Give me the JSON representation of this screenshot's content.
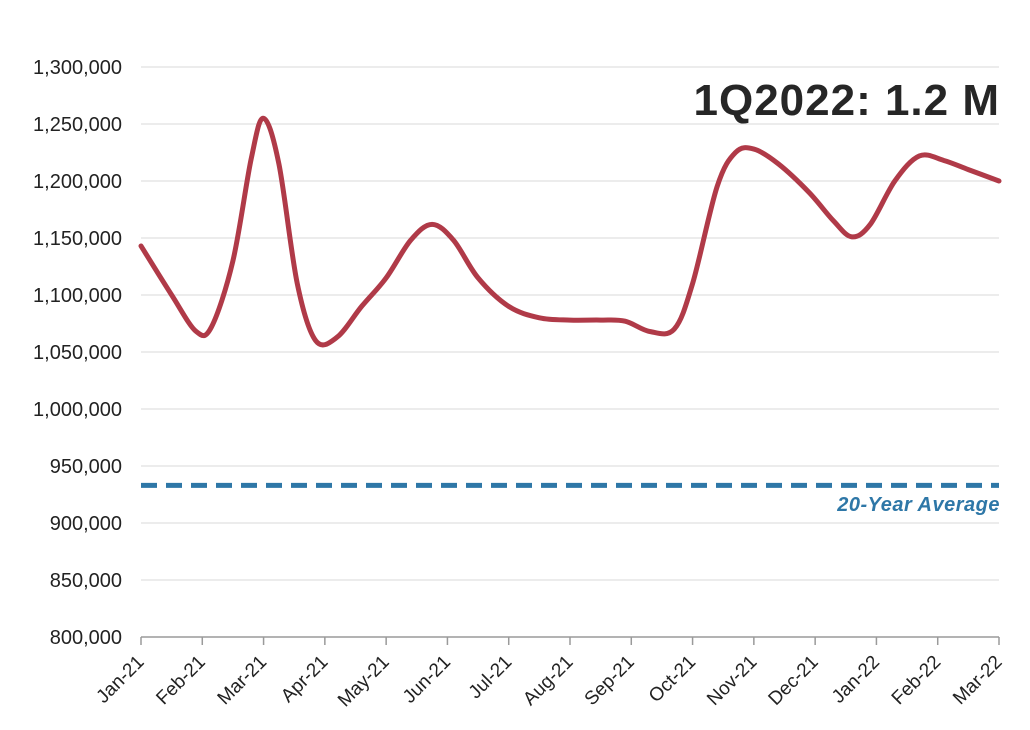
{
  "chart_title": "",
  "annotation": "1Q2022: 1.2 M",
  "avg_label": "20-Year Average",
  "colors": {
    "line": "#b03a48",
    "average": "#2e77a7",
    "grid": "#d9d9d9",
    "text": "#222222"
  },
  "chart_data": {
    "type": "line",
    "title": "",
    "xlabel": "",
    "ylabel": "",
    "ylim": [
      800000,
      1300000
    ],
    "yticks": [
      "800,000",
      "850,000",
      "900,000",
      "950,000",
      "1,000,000",
      "1,050,000",
      "1,100,000",
      "1,150,000",
      "1,200,000",
      "1,250,000",
      "1,300,000"
    ],
    "categories": [
      "Jan-21",
      "Feb-21",
      "Mar-21",
      "Apr-21",
      "May-21",
      "Jun-21",
      "Jul-21",
      "Aug-21",
      "Sep-21",
      "Oct-21",
      "Nov-21",
      "Dec-21",
      "Jan-22",
      "Feb-22",
      "Mar-22"
    ],
    "grid": true,
    "series": [
      {
        "points": [
          [
            0,
            1143000
          ],
          [
            0.5,
            1100000
          ],
          [
            0.9,
            1068000
          ],
          [
            1.15,
            1072000
          ],
          [
            1.5,
            1130000
          ],
          [
            1.8,
            1220000
          ],
          [
            2.0,
            1255000
          ],
          [
            2.25,
            1215000
          ],
          [
            2.55,
            1110000
          ],
          [
            2.85,
            1060000
          ],
          [
            3.2,
            1063000
          ],
          [
            3.6,
            1090000
          ],
          [
            4.0,
            1115000
          ],
          [
            4.4,
            1148000
          ],
          [
            4.75,
            1162000
          ],
          [
            5.1,
            1148000
          ],
          [
            5.5,
            1115000
          ],
          [
            6.0,
            1090000
          ],
          [
            6.5,
            1080000
          ],
          [
            7.0,
            1078000
          ],
          [
            7.5,
            1078000
          ],
          [
            7.9,
            1077000
          ],
          [
            8.3,
            1068000
          ],
          [
            8.7,
            1070000
          ],
          [
            9.0,
            1110000
          ],
          [
            9.4,
            1195000
          ],
          [
            9.7,
            1225000
          ],
          [
            10.0,
            1228000
          ],
          [
            10.4,
            1215000
          ],
          [
            10.9,
            1190000
          ],
          [
            11.3,
            1165000
          ],
          [
            11.6,
            1151000
          ],
          [
            11.9,
            1162000
          ],
          [
            12.3,
            1200000
          ],
          [
            12.7,
            1222000
          ],
          [
            13.1,
            1218000
          ],
          [
            13.5,
            1210000
          ],
          [
            14.0,
            1200000
          ]
        ]
      },
      {
        "name": "20-Year Average",
        "value": 933000,
        "style": "dashed"
      }
    ]
  }
}
